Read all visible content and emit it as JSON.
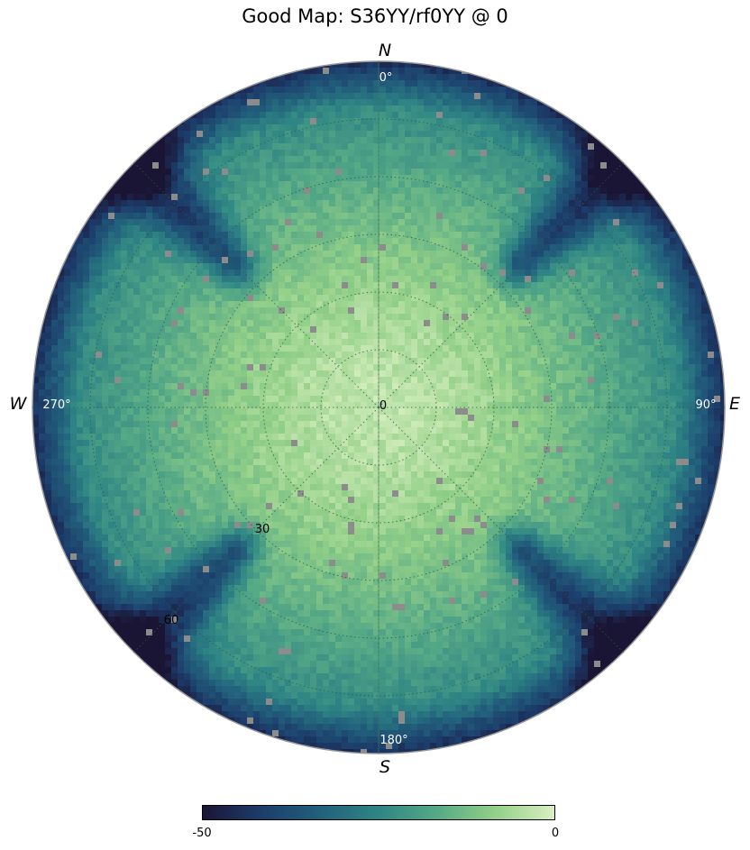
{
  "chart_data": {
    "type": "heatmap",
    "projection": "polar (sky map, zenith at center)",
    "title": "Good Map: S36YY/rf0YY @ 0",
    "compass": {
      "north": "N",
      "south": "S",
      "east": "E",
      "west": "W"
    },
    "azimuth_ticks": [
      "0$^\\circ$",
      "90$^\\circ$",
      "180$^\\circ$",
      "270$^\\circ$"
    ],
    "azimuth_tick_display": [
      "0°",
      "90°",
      "180°",
      "270°"
    ],
    "zenith_tick_labels": [
      "0",
      "30",
      "60"
    ],
    "zenith_range": [
      0,
      90
    ],
    "zenith_grid_step": 15,
    "azimuth_grid_step": 45,
    "grid": true,
    "value_range": [
      -50,
      0
    ],
    "colorbar": {
      "min_label": "-50",
      "max_label": "0",
      "orientation": "horizontal",
      "placement": "bottom"
    },
    "colormap_stops": [
      "#1b1535",
      "#1c3d6b",
      "#22607c",
      "#2f8584",
      "#56a986",
      "#93d088",
      "#daf0c2"
    ],
    "masked_color": "#8c8c8c",
    "pattern": {
      "description": "bright (near 0 dB) broad lobe at zenith; four dark nulls along diagonal azimuths 45,135,225,315 beyond zenith ~45; dark horizon ring",
      "center_value": -3,
      "null_azimuths_deg": [
        45,
        135,
        225,
        315
      ],
      "null_zenith_start_deg": 42,
      "horizon_value": -42
    }
  }
}
